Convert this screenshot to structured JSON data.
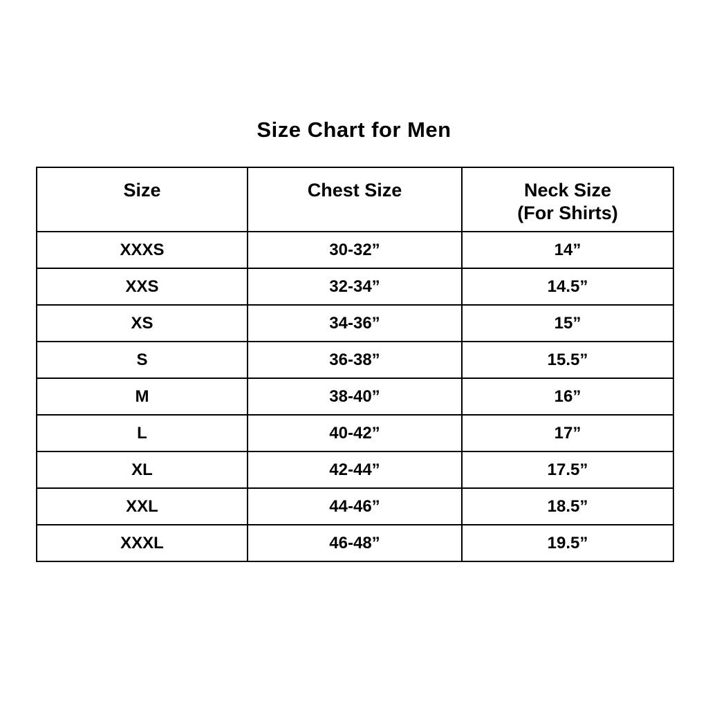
{
  "page": {
    "background_color": "#ffffff",
    "text_color": "#000000",
    "border_color": "#000000"
  },
  "title": "Size Chart for Men",
  "table": {
    "headers": [
      {
        "line1": "Size"
      },
      {
        "line1": "Chest Size"
      },
      {
        "line1": "Neck Size",
        "line2": "(For Shirts)"
      }
    ],
    "rows": [
      {
        "size": "XXXS",
        "chest": "30-32”",
        "neck": "14”"
      },
      {
        "size": "XXS",
        "chest": "32-34”",
        "neck": "14.5”"
      },
      {
        "size": "XS",
        "chest": "34-36”",
        "neck": "15”"
      },
      {
        "size": "S",
        "chest": "36-38”",
        "neck": "15.5”"
      },
      {
        "size": "M",
        "chest": "38-40”",
        "neck": "16”"
      },
      {
        "size": "L",
        "chest": "40-42”",
        "neck": "17”"
      },
      {
        "size": "XL",
        "chest": "42-44”",
        "neck": "17.5”"
      },
      {
        "size": "XXL",
        "chest": "44-46”",
        "neck": "18.5”"
      },
      {
        "size": "XXXL",
        "chest": "46-48”",
        "neck": "19.5”"
      }
    ]
  },
  "chart_data": {
    "type": "table",
    "title": "Size Chart for Men",
    "columns": [
      "Size",
      "Chest Size",
      "Neck Size (For Shirts)"
    ],
    "rows": [
      [
        "XXXS",
        "30-32”",
        "14”"
      ],
      [
        "XXS",
        "32-34”",
        "14.5”"
      ],
      [
        "XS",
        "34-36”",
        "15”"
      ],
      [
        "S",
        "36-38”",
        "15.5”"
      ],
      [
        "M",
        "38-40”",
        "16”"
      ],
      [
        "L",
        "40-42”",
        "17”"
      ],
      [
        "XL",
        "42-44”",
        "17.5”"
      ],
      [
        "XXL",
        "44-46”",
        "18.5”"
      ],
      [
        "XXXL",
        "46-48”",
        "19.5”"
      ]
    ]
  }
}
